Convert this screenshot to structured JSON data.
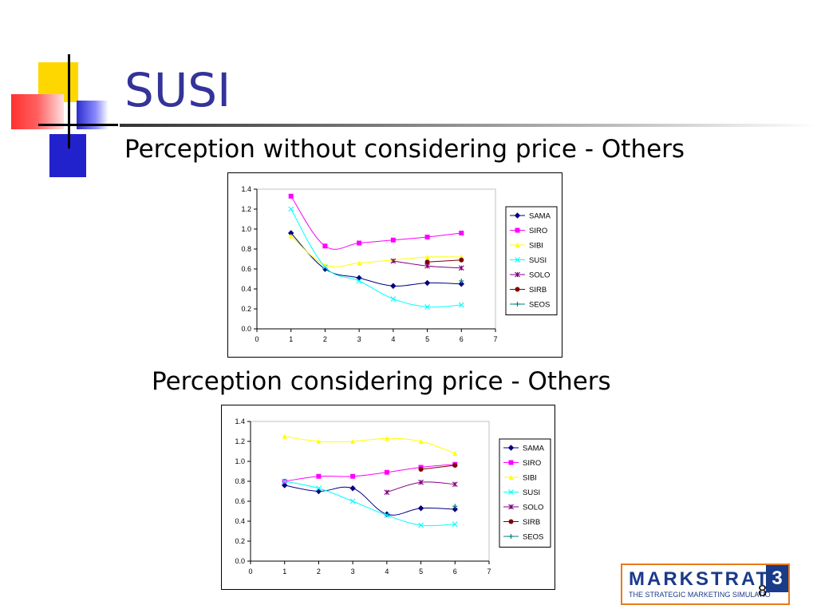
{
  "slide": {
    "title": "SUSI",
    "subtitle_1": "Perception without considering price - Others",
    "subtitle_2": "Perception considering price - Others",
    "page_number": "8"
  },
  "logo": {
    "name": "MARKSTRAT",
    "tagline": "THE STRATEGIC MARKETING SIMULATIO",
    "version": "3"
  },
  "chart_data": [
    {
      "type": "line",
      "x": [
        1,
        2,
        3,
        4,
        5,
        6
      ],
      "xlim": [
        0,
        7
      ],
      "xticks": [
        "0",
        "1",
        "2",
        "3",
        "4",
        "5",
        "6",
        "7"
      ],
      "ylim": [
        0,
        1.4
      ],
      "yticks": [
        "0.0",
        "0.2",
        "0.4",
        "0.6",
        "0.8",
        "1.0",
        "1.2",
        "1.4"
      ],
      "legend_position": "right",
      "series": [
        {
          "name": "SAMA",
          "color": "#000080",
          "marker": "diamond",
          "values": [
            0.96,
            0.6,
            0.51,
            0.43,
            0.46,
            0.45
          ]
        },
        {
          "name": "SIRO",
          "color": "#ff00ff",
          "marker": "square",
          "values": [
            1.33,
            0.83,
            0.86,
            0.89,
            0.92,
            0.96
          ]
        },
        {
          "name": "SIBI",
          "color": "#ffff00",
          "marker": "triangle",
          "values": [
            0.93,
            0.64,
            0.66,
            0.69,
            0.72,
            0.72
          ]
        },
        {
          "name": "SUSI",
          "color": "#00ffff",
          "marker": "x",
          "values": [
            1.2,
            0.62,
            0.48,
            0.3,
            0.22,
            0.24
          ]
        },
        {
          "name": "SOLO",
          "color": "#800080",
          "marker": "star",
          "values": [
            null,
            null,
            null,
            0.68,
            0.63,
            0.61
          ]
        },
        {
          "name": "SIRB",
          "color": "#800000",
          "marker": "circle",
          "values": [
            null,
            null,
            null,
            null,
            0.67,
            0.69
          ]
        },
        {
          "name": "SEOS",
          "color": "#008080",
          "marker": "plus",
          "values": [
            null,
            null,
            null,
            null,
            null,
            0.48
          ]
        }
      ]
    },
    {
      "type": "line",
      "x": [
        1,
        2,
        3,
        4,
        5,
        6
      ],
      "xlim": [
        0,
        7
      ],
      "xticks": [
        "0",
        "1",
        "2",
        "3",
        "4",
        "5",
        "6",
        "7"
      ],
      "ylim": [
        0,
        1.4
      ],
      "yticks": [
        "0.0",
        "0.2",
        "0.4",
        "0.6",
        "0.8",
        "1.0",
        "1.2",
        "1.4"
      ],
      "legend_position": "right",
      "series": [
        {
          "name": "SAMA",
          "color": "#000080",
          "marker": "diamond",
          "values": [
            0.76,
            0.7,
            0.73,
            0.47,
            0.53,
            0.52
          ]
        },
        {
          "name": "SIRO",
          "color": "#ff00ff",
          "marker": "square",
          "values": [
            0.8,
            0.85,
            0.85,
            0.89,
            0.94,
            0.97
          ]
        },
        {
          "name": "SIBI",
          "color": "#ffff00",
          "marker": "triangle",
          "values": [
            1.25,
            1.2,
            1.2,
            1.23,
            1.2,
            1.08
          ]
        },
        {
          "name": "SUSI",
          "color": "#00ffff",
          "marker": "x",
          "values": [
            0.8,
            0.73,
            0.6,
            0.46,
            0.36,
            0.37
          ]
        },
        {
          "name": "SOLO",
          "color": "#800080",
          "marker": "star",
          "values": [
            null,
            null,
            null,
            0.69,
            0.79,
            0.77
          ]
        },
        {
          "name": "SIRB",
          "color": "#800000",
          "marker": "circle",
          "values": [
            null,
            null,
            null,
            null,
            0.92,
            0.96
          ]
        },
        {
          "name": "SEOS",
          "color": "#008080",
          "marker": "plus",
          "values": [
            null,
            null,
            null,
            null,
            null,
            0.55
          ]
        }
      ]
    }
  ]
}
